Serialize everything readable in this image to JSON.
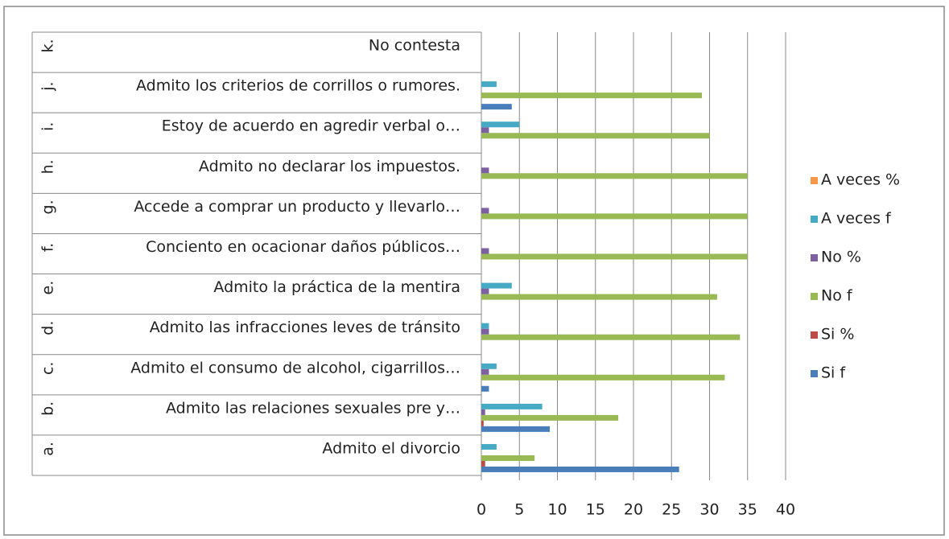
{
  "chart_data": {
    "type": "hbar",
    "category_letters": [
      "a.",
      "b.",
      "c.",
      "d.",
      "e.",
      "f.",
      "g.",
      "h.",
      "i.",
      "j.",
      "k."
    ],
    "categories": [
      "Admito el divorcio",
      "Admito las relaciones sexuales pre y…",
      "Admito el consumo de alcohol, cigarrillos…",
      "Admito las infracciones leves de tránsito",
      "Admito la práctica de la mentira",
      "Conciento en ocacionar daños públicos…",
      "Accede a comprar un producto y llevarlo…",
      "Admito no declarar los impuestos.",
      "Estoy de acuerdo en agredir verbal o…",
      "Admito los criterios de corrillos o rumores.",
      "No contesta"
    ],
    "series": [
      {
        "name": "Si f",
        "color": "#4a7ebb",
        "values": [
          26,
          9,
          1,
          0,
          0,
          0,
          0,
          0,
          0,
          4,
          0
        ]
      },
      {
        "name": "Si %",
        "color": "#be4b48",
        "values": [
          0.5,
          0.3,
          0,
          0,
          0,
          0,
          0,
          0,
          0,
          0,
          0
        ]
      },
      {
        "name": "No f",
        "color": "#98b954",
        "values": [
          7,
          18,
          32,
          34,
          31,
          35,
          35,
          35,
          30,
          29,
          0
        ]
      },
      {
        "name": "No %",
        "color": "#7d60a0",
        "values": [
          0,
          0.5,
          1,
          1,
          1,
          1,
          1,
          1,
          1,
          0,
          0
        ]
      },
      {
        "name": "A veces f",
        "color": "#46aac5",
        "values": [
          2,
          8,
          2,
          1,
          4,
          0,
          0,
          0,
          5,
          2,
          0
        ]
      },
      {
        "name": "A veces %",
        "color": "#f79646",
        "values": [
          0,
          0,
          0,
          0,
          0,
          0,
          0,
          0,
          0,
          0,
          0
        ]
      }
    ],
    "xlim": [
      0,
      40
    ],
    "xticks": [
      0,
      5,
      10,
      15,
      20,
      25,
      30,
      35,
      40
    ],
    "grid": true
  }
}
